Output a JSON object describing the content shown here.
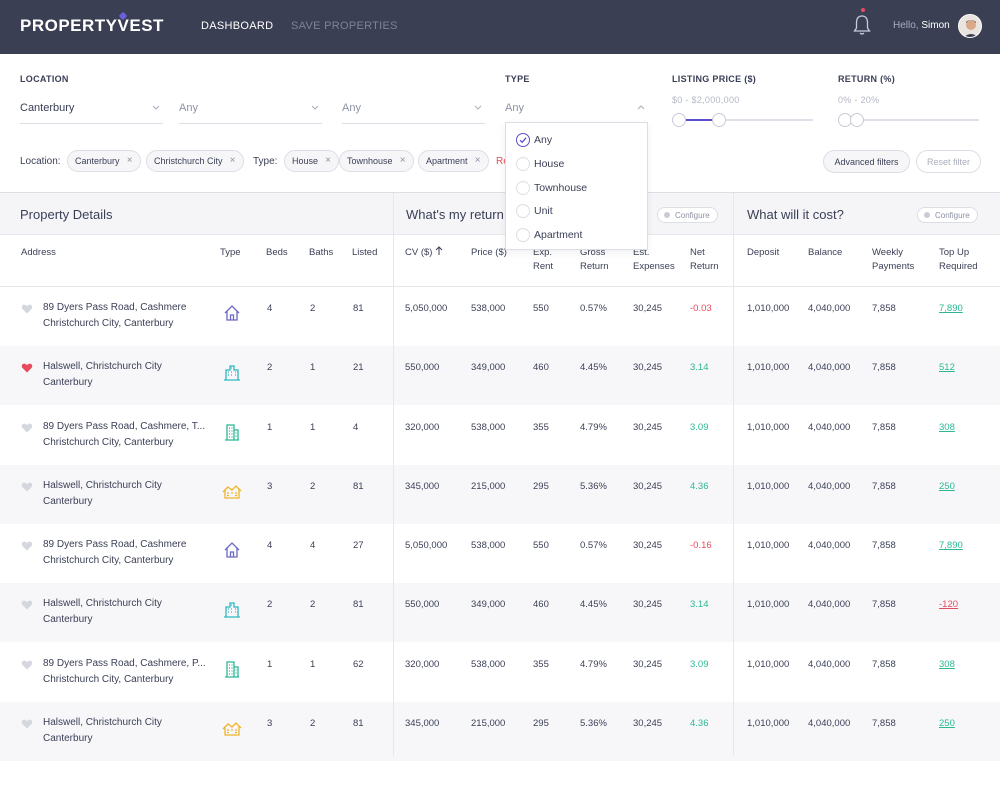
{
  "header": {
    "logo": "PROPERTY VEST",
    "nav": [
      "DASHBOARD",
      "SAVE PROPERTIES"
    ],
    "greeting": "Hello,",
    "user": "Simon"
  },
  "filters": {
    "location_label": "LOCATION",
    "type_label": "TYPE",
    "listing_price_label": "LISTING PRICE ($)",
    "return_label": "RETURN (%)",
    "location_select_1": "Canterbury",
    "location_select_2": "Any",
    "location_select_3": "Any",
    "type_select": "Any",
    "listing_price_range": "$0 - $2,000,000",
    "return_range": "0% - 20%",
    "listing_price_fill": {
      "low": 0.0,
      "high": 0.3
    },
    "return_fill": {
      "low": 0.0,
      "high": 0.15
    }
  },
  "chips": {
    "location_label": "Location:",
    "type_label": "Type:",
    "location": [
      "Canterbury",
      "Christchurch City"
    ],
    "type": [
      "House",
      "Townhouse",
      "Apartment"
    ],
    "reset_partial": "Re",
    "advanced": "Advanced filters",
    "reset": "Reset filter"
  },
  "type_dropdown": {
    "options": [
      "Any",
      "House",
      "Townhouse",
      "Unit",
      "Apartment"
    ],
    "selected": "Any"
  },
  "sections": {
    "property": "Property Details",
    "returns": "What's my return",
    "cost": "What will it cost?",
    "configure": "Configure"
  },
  "columns": {
    "address": "Address",
    "type": "Type",
    "beds": "Beds",
    "baths": "Baths",
    "listed": "Listed",
    "cv": "CV ($)",
    "price": "Price ($)",
    "exp_rent_1": "Exp.",
    "exp_rent_2": "Rent",
    "gross_1": "Gross",
    "gross_2": "Return",
    "est_1": "Est.",
    "est_2": "Expenses",
    "net_1": "Net",
    "net_2": "Return",
    "deposit": "Deposit",
    "balance": "Balance",
    "weekly_1": "Weekly",
    "weekly_2": "Payments",
    "topup_1": "Top Up",
    "topup_2": "Required"
  },
  "rows": [
    {
      "line1": "89 Dyers Pass Road, Cashmere",
      "line2": "Christchurch City, Canterbury",
      "favorite": false,
      "type_icon": "house-icon",
      "beds": "4",
      "baths": "2",
      "listed": "81",
      "cv": "5,050,000",
      "price": "538,000",
      "rent": "550",
      "gross": "0.57%",
      "expenses": "30,245",
      "net": "-0.03",
      "deposit": "1,010,000",
      "balance": "4,040,000",
      "weekly": "7,858",
      "topup": "7,890"
    },
    {
      "line1": "Halswell, Christchurch City",
      "line2": "Canterbury",
      "favorite": true,
      "type_icon": "apartment-building-icon",
      "beds": "2",
      "baths": "1",
      "listed": "21",
      "cv": "550,000",
      "price": "349,000",
      "rent": "460",
      "gross": "4.45%",
      "expenses": "30,245",
      "net": "3.14",
      "deposit": "1,010,000",
      "balance": "4,040,000",
      "weekly": "7,858",
      "topup": "512"
    },
    {
      "line1": "89 Dyers Pass Road, Cashmere, T...",
      "line2": "Christchurch City, Canterbury",
      "favorite": false,
      "type_icon": "tower-building-icon",
      "beds": "1",
      "baths": "1",
      "listed": "4",
      "cv": "320,000",
      "price": "538,000",
      "rent": "355",
      "gross": "4.79%",
      "expenses": "30,245",
      "net": "3.09",
      "deposit": "1,010,000",
      "balance": "4,040,000",
      "weekly": "7,858",
      "topup": "308"
    },
    {
      "line1": "Halswell, Christchurch City",
      "line2": "Canterbury",
      "favorite": false,
      "type_icon": "townhouse-icon",
      "beds": "3",
      "baths": "2",
      "listed": "81",
      "cv": "345,000",
      "price": "215,000",
      "rent": "295",
      "gross": "5.36%",
      "expenses": "30,245",
      "net": "4.36",
      "deposit": "1,010,000",
      "balance": "4,040,000",
      "weekly": "7,858",
      "topup": "250"
    },
    {
      "line1": "89 Dyers Pass Road, Cashmere",
      "line2": "Christchurch City, Canterbury",
      "favorite": false,
      "type_icon": "house-icon",
      "beds": "4",
      "baths": "4",
      "listed": "27",
      "cv": "5,050,000",
      "price": "538,000",
      "rent": "550",
      "gross": "0.57%",
      "expenses": "30,245",
      "net": "-0.16",
      "deposit": "1,010,000",
      "balance": "4,040,000",
      "weekly": "7,858",
      "topup": "7,890"
    },
    {
      "line1": "Halswell, Christchurch City",
      "line2": "Canterbury",
      "favorite": false,
      "type_icon": "apartment-building-icon",
      "beds": "2",
      "baths": "2",
      "listed": "81",
      "cv": "550,000",
      "price": "349,000",
      "rent": "460",
      "gross": "4.45%",
      "expenses": "30,245",
      "net": "3.14",
      "deposit": "1,010,000",
      "balance": "4,040,000",
      "weekly": "7,858",
      "topup": "-120"
    },
    {
      "line1": "89 Dyers Pass Road, Cashmere, P...",
      "line2": "Christchurch City, Canterbury",
      "favorite": false,
      "type_icon": "tower-building-icon",
      "beds": "1",
      "baths": "1",
      "listed": "62",
      "cv": "320,000",
      "price": "538,000",
      "rent": "355",
      "gross": "4.79%",
      "expenses": "30,245",
      "net": "3.09",
      "deposit": "1,010,000",
      "balance": "4,040,000",
      "weekly": "7,858",
      "topup": "308"
    },
    {
      "line1": "Halswell, Christchurch City",
      "line2": "Canterbury",
      "favorite": false,
      "type_icon": "townhouse-icon",
      "beds": "3",
      "baths": "2",
      "listed": "81",
      "cv": "345,000",
      "price": "215,000",
      "rent": "295",
      "gross": "5.36%",
      "expenses": "30,245",
      "net": "4.36",
      "deposit": "1,010,000",
      "balance": "4,040,000",
      "weekly": "7,858",
      "topup": "250"
    }
  ],
  "colors": {
    "header_bg": "#3b3f54",
    "accent": "#5b4fcf",
    "positive": "#2bb893",
    "negative": "#e84a5f",
    "house_icon": "#6b68c4",
    "apartment_icon": "#2bb8c0",
    "tower_icon": "#2bb893",
    "townhouse_icon": "#f0b429"
  }
}
